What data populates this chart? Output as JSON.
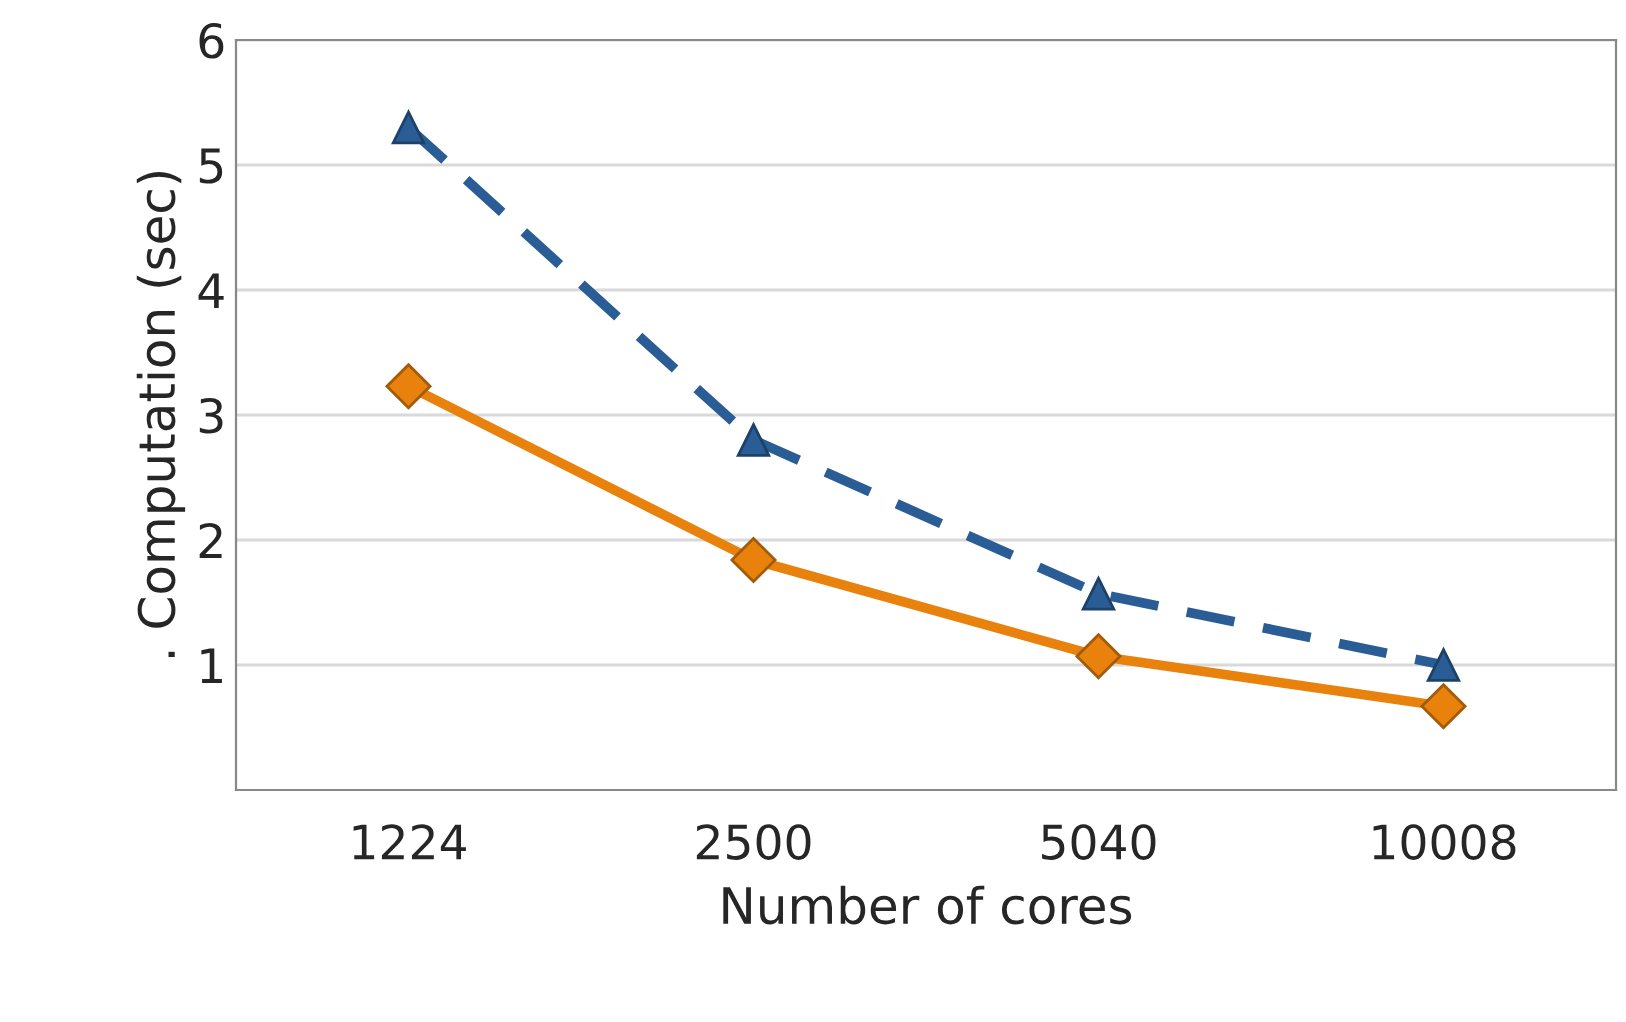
{
  "chart_data": {
    "type": "line",
    "xlabel": "Number of cores",
    "ylabel": ". Computation (sec)",
    "categories": [
      "1224",
      "2500",
      "5040",
      "10008"
    ],
    "series": [
      {
        "color": "#2a5d95",
        "values": [
          5.3,
          2.8,
          1.57,
          1.0
        ],
        "marker": "triangle",
        "line_style": "dashed"
      },
      {
        "color": "#e8820c",
        "values": [
          3.23,
          1.84,
          1.07,
          0.67
        ],
        "marker": "diamond",
        "line_style": "solid"
      }
    ],
    "ylim": [
      0,
      6
    ],
    "yticks": [
      1,
      2,
      3,
      4,
      5,
      6
    ],
    "grid": "y",
    "legend": false
  }
}
